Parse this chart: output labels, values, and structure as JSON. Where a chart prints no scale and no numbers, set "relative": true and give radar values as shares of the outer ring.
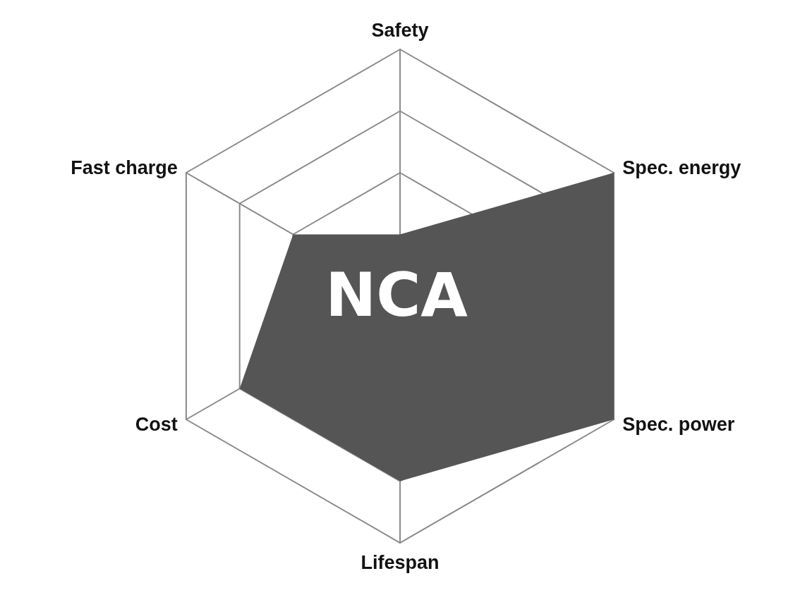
{
  "chart_data": {
    "type": "radar",
    "relative": true,
    "categories": [
      "Safety",
      "Spec. energy",
      "Spec. power",
      "Lifespan",
      "Cost",
      "Fast charge"
    ],
    "series": [
      {
        "color": "#555555",
        "values": [
          0.25,
          1,
          1,
          0.75,
          0.75,
          0.5
        ]
      }
    ],
    "annotations": [
      "NCA"
    ],
    "marker": "none"
  }
}
